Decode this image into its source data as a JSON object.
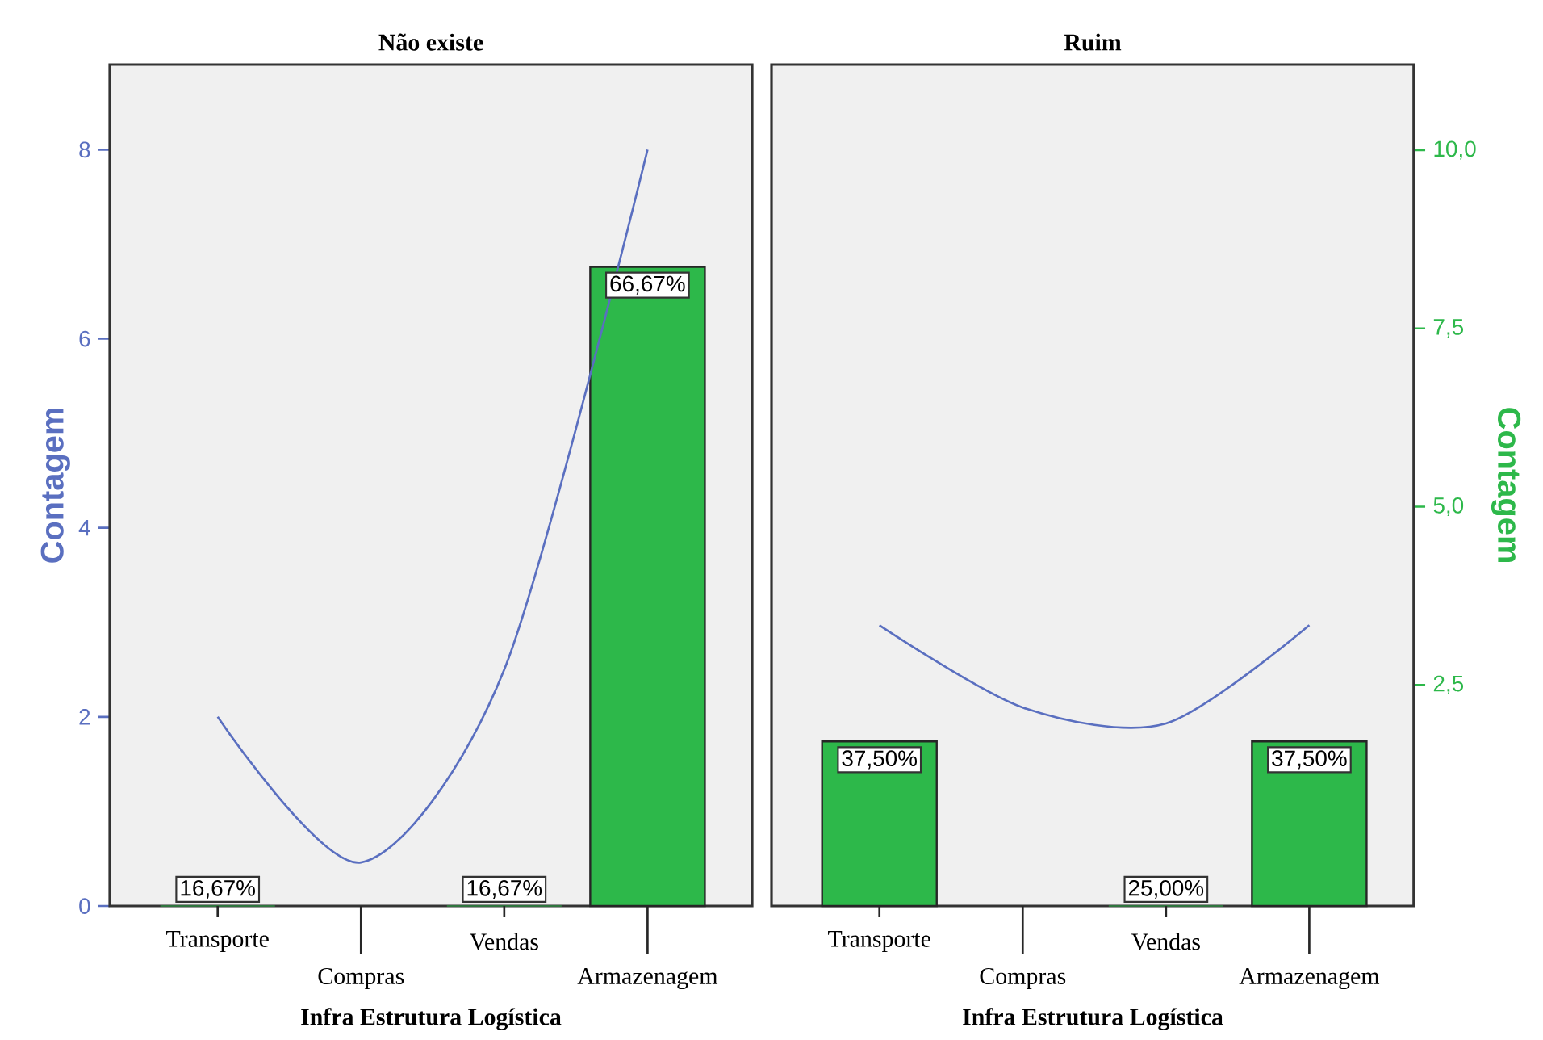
{
  "chart_data": [
    {
      "type": "bar",
      "title": "Não existe",
      "xlabel": "Infra Estrutura Logística",
      "ylabel": "Contagem",
      "categories": [
        "Transporte",
        "Compras",
        "Vendas",
        "Armazenagem"
      ],
      "series": [
        {
          "color": "#2db84a",
          "values": [
            0,
            null,
            0,
            6.76
          ]
        },
        {
          "type": "line",
          "color": "#5a6fc0",
          "values": [
            2,
            0.46,
            2.5,
            8
          ]
        }
      ],
      "annotations": [
        {
          "text": "16,67%",
          "x": "Transporte",
          "y": 0
        },
        {
          "text": "16,67%",
          "x": "Vendas",
          "y": 0
        },
        {
          "text": "66,67%",
          "x": "Armazenagem",
          "y": 6.76
        }
      ],
      "ylim": [
        0,
        8.9
      ],
      "yticks": [
        0,
        2,
        4,
        6,
        8
      ]
    },
    {
      "type": "bar",
      "title": "Ruim",
      "xlabel": "Infra Estrutura Logística",
      "y2label": "Contagem",
      "categories": [
        "Transporte",
        "Compras",
        "Vendas",
        "Armazenagem"
      ],
      "series": [
        {
          "color": "#2db84a",
          "values": [
            1.74,
            null,
            0,
            1.74
          ]
        },
        {
          "type": "line",
          "color": "#5a6fc0",
          "values": [
            2.97,
            2.1,
            1.93,
            2.97
          ]
        }
      ],
      "annotations": [
        {
          "text": "37,50%",
          "x": "Transporte",
          "y": 1.74
        },
        {
          "text": "25,00%",
          "x": "Vendas",
          "y": 0
        },
        {
          "text": "37,50%",
          "x": "Armazenagem",
          "y": 1.74
        }
      ],
      "ylim": [
        0,
        8.9
      ],
      "y2lim": [
        -0.6,
        11.2
      ],
      "y2ticks": [
        {
          "value": 2.5,
          "label": "2,5"
        },
        {
          "value": 5,
          "label": "5,0"
        },
        {
          "value": 7.5,
          "label": "7,5"
        },
        {
          "value": 10,
          "label": "10,0"
        }
      ],
      "tick_labels": [
        "x",
        "y2"
      ]
    }
  ]
}
